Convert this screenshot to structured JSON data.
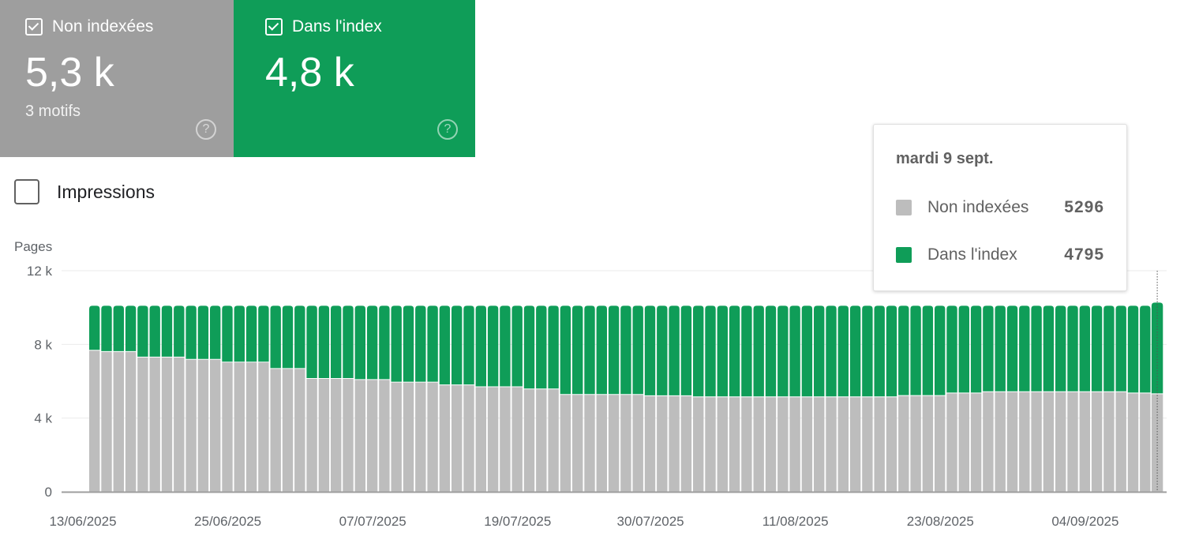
{
  "cards": [
    {
      "label": "Non indexées",
      "value": "5,3 k",
      "sub": "3 motifs",
      "color": "#9e9e9e"
    },
    {
      "label": "Dans l'index",
      "value": "4,8 k",
      "color": "#0f9d58"
    }
  ],
  "impressions_label": "Impressions",
  "tooltip": {
    "date": "mardi 9 sept.",
    "rows": [
      {
        "label": "Non indexées",
        "value": "5296"
      },
      {
        "label": "Dans l'index",
        "value": "4795"
      }
    ]
  },
  "chart_data": {
    "type": "bar",
    "stacked": true,
    "ylabel": "Pages",
    "ylim": [
      0,
      12000
    ],
    "yticks": [
      {
        "v": 0,
        "label": "0"
      },
      {
        "v": 4000,
        "label": "4 k"
      },
      {
        "v": 8000,
        "label": "8 k"
      },
      {
        "v": 12000,
        "label": "12 k"
      }
    ],
    "start_date": "13/06/2025",
    "end_date": "09/09/2025",
    "xticks": [
      {
        "i": 0,
        "label": "13/06/2025"
      },
      {
        "i": 12,
        "label": "25/06/2025"
      },
      {
        "i": 24,
        "label": "07/07/2025"
      },
      {
        "i": 36,
        "label": "19/07/2025"
      },
      {
        "i": 47,
        "label": "30/07/2025"
      },
      {
        "i": 59,
        "label": "11/08/2025"
      },
      {
        "i": 71,
        "label": "23/08/2025"
      },
      {
        "i": 83,
        "label": "04/09/2025"
      }
    ],
    "highlight_index": 88,
    "series": [
      {
        "name": "Non indexées",
        "color": "#bdbdbd",
        "values": [
          7660,
          7590,
          7590,
          7590,
          7290,
          7290,
          7290,
          7290,
          7170,
          7170,
          7170,
          7020,
          7020,
          7020,
          7020,
          6670,
          6670,
          6670,
          6130,
          6130,
          6130,
          6130,
          6070,
          6070,
          6070,
          5930,
          5930,
          5930,
          5930,
          5780,
          5780,
          5780,
          5680,
          5680,
          5680,
          5680,
          5560,
          5560,
          5560,
          5260,
          5260,
          5260,
          5260,
          5260,
          5260,
          5260,
          5190,
          5190,
          5190,
          5190,
          5130,
          5130,
          5130,
          5130,
          5130,
          5130,
          5130,
          5130,
          5130,
          5130,
          5130,
          5130,
          5130,
          5130,
          5130,
          5130,
          5130,
          5200,
          5200,
          5200,
          5200,
          5340,
          5340,
          5340,
          5410,
          5410,
          5410,
          5410,
          5410,
          5410,
          5410,
          5410,
          5410,
          5410,
          5410,
          5410,
          5340,
          5340,
          5296
        ]
      },
      {
        "name": "Dans l'index",
        "color": "#0f9d58",
        "values": [
          2440,
          2510,
          2510,
          2510,
          2810,
          2810,
          2810,
          2810,
          2930,
          2930,
          2930,
          3080,
          3080,
          3080,
          3080,
          3430,
          3430,
          3430,
          3970,
          3970,
          3970,
          3970,
          4030,
          4030,
          4030,
          4170,
          4170,
          4170,
          4170,
          4320,
          4320,
          4320,
          4420,
          4420,
          4420,
          4420,
          4540,
          4540,
          4540,
          4840,
          4840,
          4840,
          4840,
          4840,
          4840,
          4840,
          4910,
          4910,
          4910,
          4910,
          4970,
          4970,
          4970,
          4970,
          4970,
          4970,
          4970,
          4970,
          4970,
          4970,
          4970,
          4970,
          4970,
          4970,
          4970,
          4970,
          4970,
          4900,
          4900,
          4900,
          4900,
          4760,
          4760,
          4760,
          4690,
          4690,
          4690,
          4690,
          4690,
          4690,
          4690,
          4690,
          4690,
          4690,
          4690,
          4690,
          4760,
          4760,
          4795
        ]
      }
    ]
  }
}
